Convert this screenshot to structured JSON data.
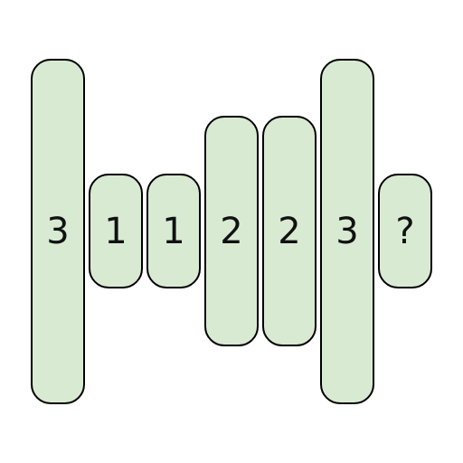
{
  "puzzle": {
    "fill_color": "#d9ead3",
    "border_color": "#000000",
    "tiles": [
      {
        "label": "3",
        "size": 3
      },
      {
        "label": "1",
        "size": 1
      },
      {
        "label": "1",
        "size": 1
      },
      {
        "label": "2",
        "size": 2
      },
      {
        "label": "2",
        "size": 2
      },
      {
        "label": "3",
        "size": 3
      },
      {
        "label": "?",
        "size": 1
      }
    ]
  }
}
